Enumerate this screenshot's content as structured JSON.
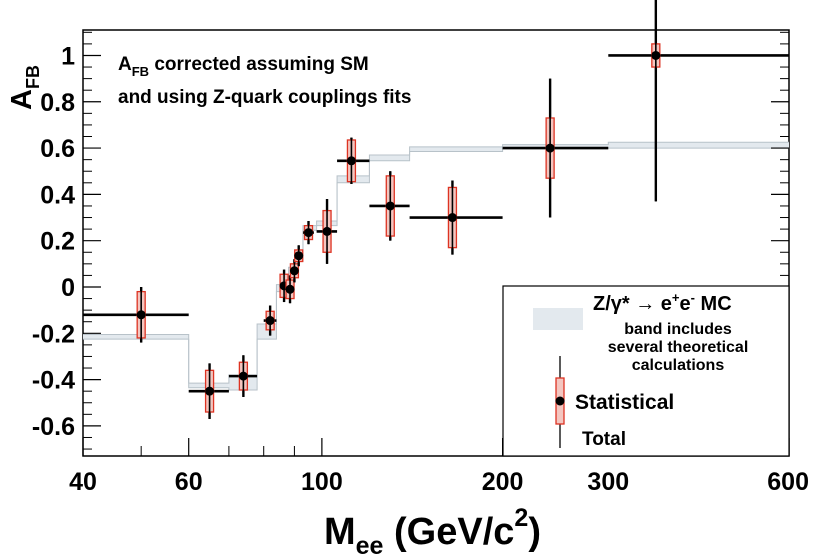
{
  "chart_data": {
    "type": "scatter",
    "title": "",
    "xscale": "log",
    "xlim": [
      40,
      600
    ],
    "ylim": [
      -0.73,
      1.11
    ],
    "x_ticks": [
      40,
      60,
      100,
      200,
      300,
      600
    ],
    "x_tick_labels": [
      "40",
      "60",
      "100",
      "200",
      "300",
      "600"
    ],
    "y_ticks": [
      -0.6,
      -0.4,
      -0.2,
      0,
      0.2,
      0.4,
      0.6,
      0.8,
      1
    ],
    "y_tick_labels": [
      "-0.6",
      "-0.4",
      "-0.2",
      "0",
      "0.2",
      "0.4",
      "0.6",
      "0.8",
      "1"
    ],
    "xlabel": {
      "main": "M",
      "sub": "ee",
      "unit": " (GeV/c",
      "sup": "2",
      "close": ")"
    },
    "ylabel": {
      "main": "A",
      "sub": "FB"
    },
    "annotation": {
      "line1_main": "A",
      "line1_sub": "FB",
      "line1_rest": " corrected assuming SM",
      "line2": "and using Z-quark couplings fits"
    },
    "legend": {
      "mc_label_1": "Z/γ* → e",
      "mc_sup_1": "+",
      "mc_mid": "e",
      "mc_sup_2": "-",
      "mc_tail": " MC",
      "band_line1": "band includes",
      "band_line2": "several theoretical",
      "band_line3": "calculations",
      "stat_label": "Statistical",
      "total_label": "Total"
    },
    "series": [
      {
        "name": "Data",
        "points": [
          {
            "x": 50,
            "xlo": 40,
            "xhi": 60,
            "y": -0.12,
            "stat": 0.1,
            "tot": 0.12
          },
          {
            "x": 65,
            "xlo": 60,
            "xhi": 70,
            "y": -0.45,
            "stat": 0.09,
            "tot": 0.12
          },
          {
            "x": 74,
            "xlo": 70,
            "xhi": 78,
            "y": -0.385,
            "stat": 0.06,
            "tot": 0.09
          },
          {
            "x": 82,
            "xlo": 80,
            "xhi": 84,
            "y": -0.145,
            "stat": 0.04,
            "tot": 0.065
          },
          {
            "x": 86.5,
            "xlo": 85,
            "xhi": 88,
            "y": 0.005,
            "stat": 0.05,
            "tot": 0.07
          },
          {
            "x": 88.5,
            "xlo": 87.5,
            "xhi": 89.5,
            "y": -0.01,
            "stat": 0.04,
            "tot": 0.06
          },
          {
            "x": 90,
            "xlo": 89.5,
            "xhi": 90.8,
            "y": 0.07,
            "stat": 0.03,
            "tot": 0.05
          },
          {
            "x": 91.5,
            "xlo": 90.8,
            "xhi": 92.5,
            "y": 0.135,
            "stat": 0.025,
            "tot": 0.045
          },
          {
            "x": 95,
            "xlo": 93,
            "xhi": 97,
            "y": 0.235,
            "stat": 0.03,
            "tot": 0.05
          },
          {
            "x": 102,
            "xlo": 98,
            "xhi": 106,
            "y": 0.24,
            "stat": 0.09,
            "tot": 0.14
          },
          {
            "x": 112,
            "xlo": 106,
            "xhi": 120,
            "y": 0.545,
            "stat": 0.09,
            "tot": 0.1
          },
          {
            "x": 130,
            "xlo": 120,
            "xhi": 140,
            "y": 0.35,
            "stat": 0.13,
            "tot": 0.15
          },
          {
            "x": 165,
            "xlo": 140,
            "xhi": 200,
            "y": 0.3,
            "stat": 0.13,
            "tot": 0.16
          },
          {
            "x": 240,
            "xlo": 200,
            "xhi": 300,
            "y": 0.6,
            "stat": 0.13,
            "tot": 0.3
          },
          {
            "x": 360,
            "xlo": 300,
            "xhi": 600,
            "y": 1.0,
            "stat": 0.05,
            "tot": 0.63
          }
        ]
      },
      {
        "name": "MC band",
        "bins": [
          {
            "lo": 40,
            "hi": 60,
            "lower": -0.225,
            "upper": -0.205
          },
          {
            "lo": 60,
            "hi": 70,
            "lower": -0.435,
            "upper": -0.415
          },
          {
            "lo": 70,
            "hi": 78,
            "lower": -0.445,
            "upper": -0.38
          },
          {
            "lo": 78,
            "hi": 84,
            "lower": -0.225,
            "upper": -0.16
          },
          {
            "lo": 84,
            "hi": 88,
            "lower": -0.02,
            "upper": 0.01
          },
          {
            "lo": 88,
            "hi": 90.8,
            "lower": 0.05,
            "upper": 0.085
          },
          {
            "lo": 90.8,
            "hi": 93,
            "lower": 0.11,
            "upper": 0.15
          },
          {
            "lo": 93,
            "hi": 98,
            "lower": 0.245,
            "upper": 0.265
          },
          {
            "lo": 98,
            "hi": 106,
            "lower": 0.265,
            "upper": 0.285
          },
          {
            "lo": 106,
            "hi": 120,
            "lower": 0.45,
            "upper": 0.48
          },
          {
            "lo": 120,
            "hi": 140,
            "lower": 0.545,
            "upper": 0.57
          },
          {
            "lo": 140,
            "hi": 200,
            "lower": 0.585,
            "upper": 0.605
          },
          {
            "lo": 200,
            "hi": 300,
            "lower": 0.6,
            "upper": 0.615
          },
          {
            "lo": 300,
            "hi": 600,
            "lower": 0.6,
            "upper": 0.625
          }
        ]
      }
    ],
    "colors": {
      "band": "#e3e9ee",
      "band_edge": "#b8c2c9",
      "stat_box": "#dd3322",
      "stat_fill": "#f3c6c0",
      "point": "#000000"
    }
  }
}
